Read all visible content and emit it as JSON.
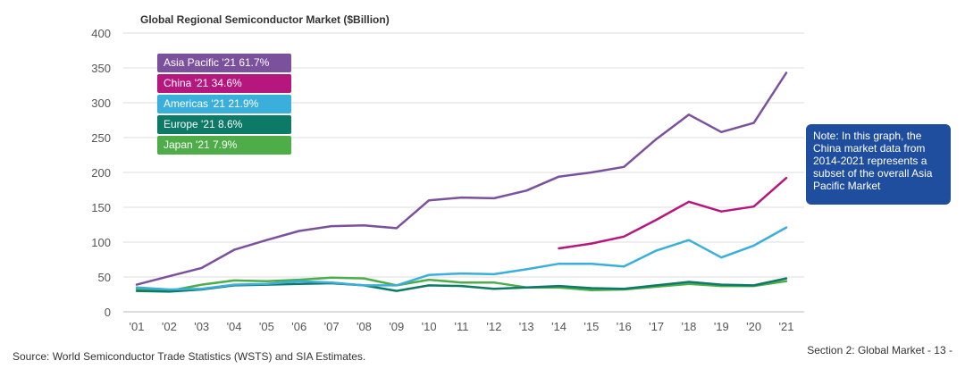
{
  "chart_data": {
    "type": "line",
    "title": "Global Regional Semiconductor Market ($Billion)",
    "categories": [
      "'01",
      "'02",
      "'03",
      "'04",
      "'05",
      "'06",
      "'07",
      "'08",
      "'09",
      "'10",
      "'11",
      "'12",
      "'13",
      "'14",
      "'15",
      "'16",
      "'17",
      "'18",
      "'19",
      "'20",
      "'21"
    ],
    "ylim": [
      0,
      400
    ],
    "yticks": [
      0,
      50,
      100,
      150,
      200,
      250,
      300,
      350,
      400
    ],
    "series": [
      {
        "name": "Asia Pacific",
        "legend": "Asia Pacific '21  61.7%",
        "color": "#7b519d",
        "values": [
          39,
          51,
          63,
          89,
          103,
          116,
          123,
          124,
          120,
          160,
          164,
          163,
          174,
          194,
          200,
          208,
          248,
          283,
          258,
          271,
          343
        ]
      },
      {
        "name": "China",
        "legend": "China '21  34.6%",
        "color": "#b5177e",
        "values": [
          null,
          null,
          null,
          null,
          null,
          null,
          null,
          null,
          null,
          null,
          null,
          null,
          null,
          91,
          98,
          108,
          132,
          158,
          144,
          151,
          192
        ]
      },
      {
        "name": "Americas",
        "legend": "Americas '21  21.9%",
        "color": "#3aafdb",
        "values": [
          35,
          32,
          33,
          39,
          40,
          44,
          42,
          38,
          38,
          53,
          55,
          54,
          61,
          69,
          69,
          65,
          88,
          103,
          78,
          95,
          121
        ]
      },
      {
        "name": "Europe",
        "legend": "Europe '21  8.6%",
        "color": "#0d7a67",
        "values": [
          30,
          29,
          32,
          38,
          39,
          40,
          41,
          38,
          30,
          38,
          37,
          33,
          35,
          37,
          34,
          33,
          38,
          43,
          39,
          38,
          48
        ]
      },
      {
        "name": "Japan",
        "legend": "Japan '21  7.9%",
        "color": "#4ead48",
        "values": [
          33,
          30,
          39,
          45,
          44,
          46,
          49,
          48,
          38,
          46,
          42,
          42,
          35,
          35,
          31,
          32,
          36,
          40,
          37,
          37,
          44
        ]
      }
    ]
  },
  "note": "Note: In this graph, the China market data from 2014-2021 represents a subset of the overall Asia Pacific Market",
  "source": "Source: World Semiconductor Trade Statistics (WSTS) and SIA Estimates.",
  "footer": "Section 2: Global Market - 13 -"
}
